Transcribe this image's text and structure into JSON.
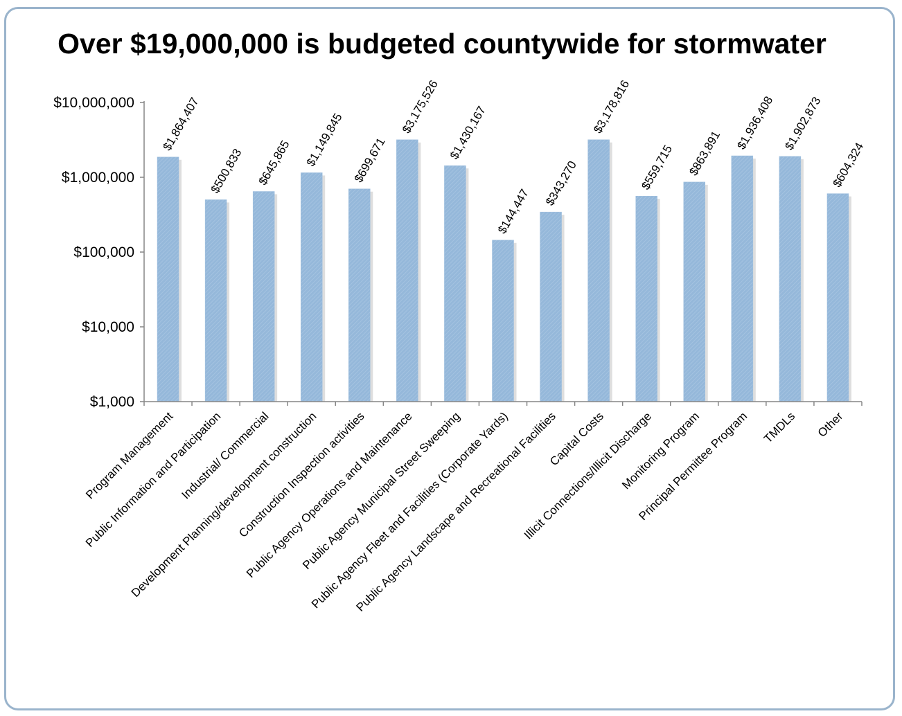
{
  "chart_data": {
    "type": "bar",
    "title": "Over $19,000,000 is budgeted countywide for stormwater",
    "yscale": "log",
    "ylim": [
      1000,
      10000000
    ],
    "y_ticks": [
      {
        "value": 10000000,
        "label": "$10,000,000"
      },
      {
        "value": 1000000,
        "label": "$1,000,000"
      },
      {
        "value": 100000,
        "label": "$100,000"
      },
      {
        "value": 10000,
        "label": "$10,000"
      },
      {
        "value": 1000,
        "label": "$1,000"
      }
    ],
    "categories": [
      "Program Management",
      "Public Information and Participation",
      "Industrial/ Commercial",
      "Development Planning/development construction",
      "Construction Inspection activities",
      "Public Agency Operations and Maintenance",
      "Public Agency Municipal Street Sweeping",
      "Public Agency Fleet and Facilities (Corporate Yards)",
      "Public Agency Landscape and Recreational Facilities",
      "Capital Costs",
      "Illicit Connections/Illicit Discharge",
      "Monitoring Program",
      "Principal Permittee Program",
      "TMDLs",
      "Other"
    ],
    "values": [
      1864407,
      500833,
      645865,
      1149845,
      699671,
      3175526,
      1430167,
      144447,
      343270,
      3178816,
      559715,
      863891,
      1936408,
      1902873,
      604324
    ],
    "data_labels": [
      "$1,864,407",
      "$500,833",
      "$645,865",
      "$1,149,845",
      "$699,671",
      "$3,175,526",
      "$1,430,167",
      "$144,447",
      "$343,270",
      "$3,178,816",
      "$559,715",
      "$863,891",
      "$1,936,408",
      "$1,902,873",
      "$604,324"
    ],
    "bar_color": "#95b8da",
    "grid": false,
    "legend": "none"
  }
}
